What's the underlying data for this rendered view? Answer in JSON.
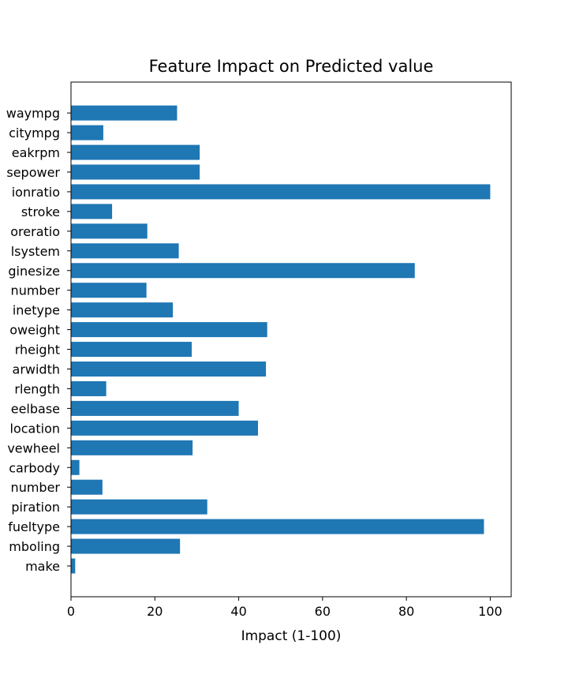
{
  "chart_data": {
    "type": "bar",
    "orientation": "horizontal",
    "title": "Feature Impact on Predicted value",
    "xlabel": "Impact (1-100)",
    "ylabel": "",
    "xlim": [
      0,
      105
    ],
    "xticks": [
      0,
      20,
      40,
      60,
      80,
      100
    ],
    "grid": false,
    "bar_color": "#1f77b4",
    "categories": [
      "make",
      "symboling",
      "fueltype",
      "aspiration",
      "doornumber",
      "carbody",
      "drivewheel",
      "enginelocation",
      "wheelbase",
      "carlength",
      "carwidth",
      "carheight",
      "curbweight",
      "enginetype",
      "cylindernumber",
      "enginesize",
      "fuelsystem",
      "boreratio",
      "stroke",
      "compressionratio",
      "horsepower",
      "peakrpm",
      "citympg",
      "highwaympg"
    ],
    "category_labels_visible": [
      "make",
      "mboling",
      "fueltype",
      "piration",
      "number",
      "carbody",
      "vewheel",
      "location",
      "eelbase",
      "rlength",
      "arwidth",
      "rheight",
      "oweight",
      "inetype",
      "number",
      "ginesize",
      "lsystem",
      "oreratio",
      "stroke",
      "ionratio",
      "sepower",
      "eakrpm",
      "citympg",
      "waympg"
    ],
    "values": [
      1,
      26,
      98.5,
      32.5,
      7.5,
      2,
      29,
      44.6,
      40,
      8.4,
      46.5,
      28.8,
      46.8,
      24.3,
      18,
      82,
      25.7,
      18.2,
      9.8,
      100,
      30.7,
      30.7,
      7.7,
      25.3
    ]
  }
}
